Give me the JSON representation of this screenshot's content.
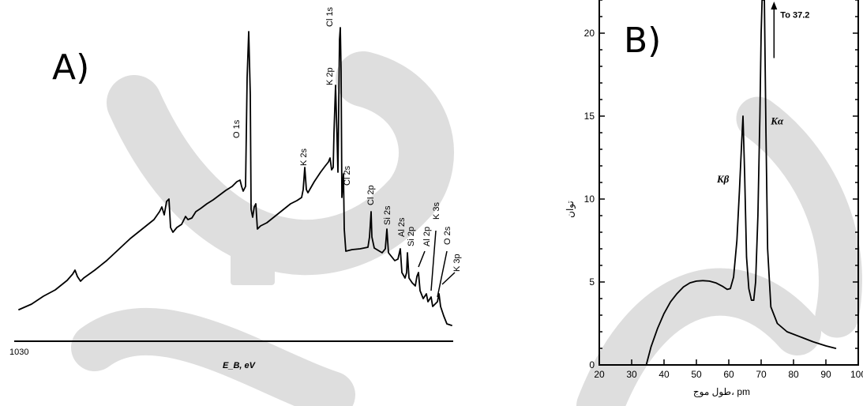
{
  "chart_data": [
    {
      "type": "line",
      "panel_label": "A)",
      "xlabel": "E_B, eV",
      "x_tick_labels": [
        "1030"
      ],
      "peaks": [
        {
          "label": "O 1s"
        },
        {
          "label": "K 2s"
        },
        {
          "label": "K 2p"
        },
        {
          "label": "Cl 1s"
        },
        {
          "label": "Cl 2s"
        },
        {
          "label": "Cl 2p"
        },
        {
          "label": "Si 2s"
        },
        {
          "label": "Al 2s"
        },
        {
          "label": "Si 2p"
        },
        {
          "label": "Al 2p"
        },
        {
          "label": "K 3s"
        },
        {
          "label": "O 2s"
        },
        {
          "label": "K 3p"
        }
      ]
    },
    {
      "type": "line",
      "panel_label": "B)",
      "xlabel": "طول موج، pm",
      "ylabel": "توان",
      "xlim": [
        20,
        100
      ],
      "ylim": [
        0,
        22
      ],
      "x_ticks": [
        20,
        30,
        40,
        50,
        60,
        70,
        80,
        90,
        100
      ],
      "y_ticks": [
        0,
        5,
        10,
        15,
        20
      ],
      "annotations": [
        {
          "label": "Kβ",
          "x": 63,
          "y": 11
        },
        {
          "label": "Kα",
          "x": 73,
          "y": 14.5
        },
        {
          "label": "To 37.2",
          "x": 73,
          "y": 21.5
        }
      ],
      "series": [
        {
          "x": [
            34.5,
            36,
            38,
            40,
            42,
            44,
            46,
            48,
            50,
            52,
            54,
            56,
            58,
            59.5,
            60.5,
            61.5,
            62.5,
            63.3,
            64,
            64.4,
            64.9,
            65.5,
            66.2,
            67,
            67.7,
            68.3,
            69,
            69.6,
            70,
            70.3,
            70.6,
            71,
            71.5,
            72,
            73,
            75,
            78,
            82,
            86,
            90,
            93
          ],
          "y": [
            0,
            1.1,
            2.2,
            3.1,
            3.8,
            4.3,
            4.7,
            4.95,
            5.05,
            5.08,
            5.05,
            4.95,
            4.75,
            4.55,
            4.6,
            5.3,
            7.5,
            10.5,
            13.5,
            15.0,
            11.5,
            6.5,
            4.6,
            3.9,
            3.9,
            5.0,
            9.0,
            15.0,
            20.0,
            22.0,
            22.0,
            22.0,
            14.0,
            7.0,
            3.5,
            2.5,
            2.0,
            1.7,
            1.4,
            1.15,
            1.0
          ]
        }
      ]
    }
  ]
}
